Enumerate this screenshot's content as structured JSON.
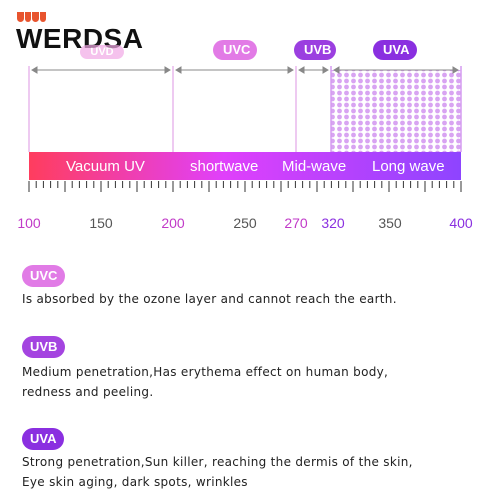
{
  "brand": {
    "name": "WERDSA"
  },
  "top_pills": {
    "uvc": "UVC",
    "uvb": "UVB",
    "uva": "UVA",
    "hidden": "UVD"
  },
  "bands": [
    {
      "label": "Vacuum UV"
    },
    {
      "label": "shortwave"
    },
    {
      "label": "Mid-wave"
    },
    {
      "label": "Long wave"
    }
  ],
  "axis": {
    "ticks": [
      "100",
      "150",
      "200",
      "250",
      "270",
      "320",
      "350",
      "400"
    ]
  },
  "descriptions": [
    {
      "tag": "UVC",
      "color": "#e17be6",
      "lines": [
        "Is absorbed by the ozone layer and cannot reach the earth."
      ]
    },
    {
      "tag": "UVB",
      "color": "#a444e0",
      "lines": [
        "Medium penetration,Has erythema effect on human body,",
        "redness and peeling."
      ]
    },
    {
      "tag": "UVA",
      "color": "#8a2fe0",
      "lines": [
        "Strong penetration,Sun killer, reaching the dermis of the skin,",
        "Eye skin aging, dark spots, wrinkles"
      ]
    }
  ],
  "colors": {
    "accent_pink": "#e27be6",
    "accent_purple": "#8a2fe0",
    "band_start": "#ff3d5e",
    "band_mid": "#e040fb",
    "band_end": "#8e44ff"
  }
}
